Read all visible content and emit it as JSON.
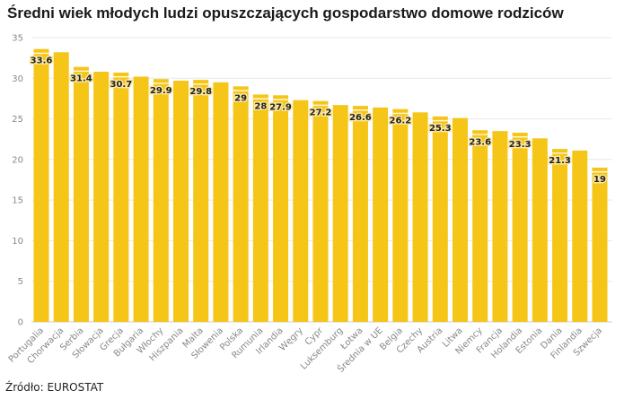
{
  "chart_data": {
    "type": "bar",
    "title": "Średni wiek młodych ludzi opuszczających gospodarstwo domowe rodziców",
    "source": "Źródło: EUROSTAT",
    "xlabel": "",
    "ylabel": "",
    "ylim": [
      0,
      35
    ],
    "yticks": [
      0,
      5,
      10,
      15,
      20,
      25,
      30,
      35
    ],
    "grid": true,
    "bar_color": "#f5c518",
    "categories": [
      "Portugalia",
      "Chorwacja",
      "Serbia",
      "Słowacja",
      "Grecja",
      "Bułgaria",
      "Włochy",
      "Hiszpania",
      "Malta",
      "Słowenia",
      "Polska",
      "Rumunia",
      "Irlandia",
      "Węgry",
      "Cypr",
      "Luksemburg",
      "Łotwa",
      "Średnia w UE",
      "Belgia",
      "Czechy",
      "Austria",
      "Litwa",
      "Niemcy",
      "Francja",
      "Holandia",
      "Estonia",
      "Dania",
      "Finlandia",
      "Szwecja"
    ],
    "values": [
      33.6,
      33.2,
      31.4,
      30.8,
      30.7,
      30.2,
      29.9,
      29.7,
      29.8,
      29.5,
      29,
      28,
      27.9,
      27.3,
      27.2,
      26.7,
      26.6,
      26.4,
      26.2,
      25.8,
      25.3,
      25.1,
      23.6,
      23.5,
      23.3,
      22.6,
      21.3,
      21.1,
      19
    ],
    "data_labels": [
      "33.6",
      "",
      "31.4",
      "",
      "30.7",
      "",
      "29.9",
      "",
      "29.8",
      "",
      "29",
      "28",
      "27.9",
      "",
      "27.2",
      "",
      "26.6",
      "",
      "26.2",
      "",
      "25.3",
      "",
      "23.6",
      "",
      "23.3",
      "",
      "21.3",
      "",
      "19"
    ]
  }
}
